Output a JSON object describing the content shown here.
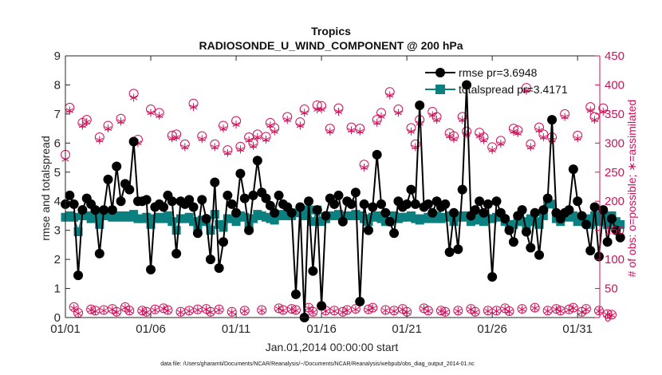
{
  "chart_data": {
    "type": "line",
    "title": "Tropics",
    "subtitle": "RADIOSONDE_U_WIND_COMPONENT @ 200 hPa",
    "xlabel": "Jan.01,2014 00:00:00 start",
    "ylabel_left": "rmse and totalspread",
    "ylabel_right": "# of obs: o=possible; ∗=assimilated",
    "footer": "data file: /Users/gharamti/Documents/NCAR/Reanalysis/~/Documents/NCAR/Reanalysis/webpub/obs_diag_output_2014-01.nc",
    "xlim": [
      0,
      31.3
    ],
    "ylim_left": [
      0,
      9
    ],
    "ylim_right": [
      0,
      450
    ],
    "x_ticks": [
      0,
      5,
      10,
      15,
      20,
      25,
      30
    ],
    "x_tick_labels": [
      "01/01",
      "01/06",
      "01/11",
      "01/16",
      "01/21",
      "01/26",
      "01/31"
    ],
    "y_ticks_left": [
      0,
      1,
      2,
      3,
      4,
      5,
      6,
      7,
      8,
      9
    ],
    "y_ticks_right": [
      0,
      50,
      100,
      150,
      200,
      250,
      300,
      350,
      400,
      450
    ],
    "legend": [
      {
        "label": "rmse pr=3.6948",
        "color": "#000000",
        "marker": "circle"
      },
      {
        "label": "totalspread pr=3.4171",
        "color": "#008080",
        "marker": "square"
      }
    ],
    "colors": {
      "rmse": "#000000",
      "totalspread": "#0a8080",
      "obs": "#d0105a",
      "axes": "#262626"
    },
    "series": [
      {
        "name": "rmse",
        "values": [
          3.9,
          4.2,
          3.9,
          1.45,
          3.7,
          4.1,
          3.9,
          3.7,
          2.2,
          3.7,
          4.75,
          3.7,
          5.2,
          4.0,
          4.6,
          4.4,
          6.05,
          4.0,
          4.0,
          4.05,
          1.65,
          3.8,
          3.9,
          3.8,
          4.2,
          4.0,
          2.2,
          4.0,
          3.9,
          4.05,
          3.8,
          2.9,
          4.05,
          3.4,
          2.0,
          4.65,
          1.7,
          2.6,
          4.2,
          3.9,
          3.6,
          4.95,
          4.1,
          3.0,
          4.2,
          5.4,
          4.3,
          4.1,
          3.85,
          3.6,
          4.2,
          3.9,
          3.8,
          3.6,
          0.8,
          3.8,
          0.0,
          4.0,
          1.6,
          3.7,
          0.4,
          3.5,
          4.1,
          3.9,
          4.2,
          3.3,
          4.0,
          3.9,
          4.3,
          0.55,
          3.9,
          3.0,
          3.8,
          5.6,
          3.9,
          3.6,
          3.3,
          2.9,
          4.0,
          3.8,
          3.9,
          4.4,
          3.9,
          7.3,
          3.8,
          3.9,
          3.6,
          4.0,
          3.8,
          3.9,
          2.25,
          3.6,
          2.35,
          4.4,
          8.0,
          3.5,
          3.7,
          4.0,
          3.6,
          3.9,
          1.4,
          4.0,
          3.6,
          3.4,
          3.0,
          2.6,
          3.5,
          3.7,
          2.95,
          2.4,
          3.6,
          2.15,
          3.7,
          4.1,
          6.8,
          3.6,
          3.4,
          3.6,
          3.7,
          5.1,
          4.0,
          3.5,
          3.2,
          2.3,
          3.8,
          2.1,
          3.7,
          2.6,
          3.4,
          3.0,
          2.75
        ]
      },
      {
        "name": "totalspread",
        "values": [
          3.45,
          3.5,
          3.45,
          2.95,
          3.5,
          3.5,
          3.4,
          3.5,
          3.2,
          3.5,
          3.5,
          3.45,
          3.5,
          3.45,
          3.5,
          3.45,
          3.55,
          3.4,
          3.4,
          3.45,
          3.2,
          3.4,
          3.45,
          3.4,
          3.5,
          3.3,
          3.0,
          3.4,
          3.4,
          3.45,
          3.3,
          3.1,
          3.35,
          3.3,
          3.0,
          3.55,
          3.2,
          3.1,
          3.4,
          3.4,
          3.3,
          3.5,
          3.45,
          3.2,
          3.4,
          3.55,
          3.5,
          3.45,
          3.4,
          3.35,
          3.5,
          3.55,
          3.5,
          3.5,
          3.6,
          3.7,
          3.5,
          3.7,
          3.3,
          3.7,
          3.3,
          3.4,
          3.5,
          3.5,
          3.55,
          3.4,
          3.5,
          3.5,
          3.55,
          3.5,
          3.4,
          3.3,
          3.45,
          3.5,
          3.4,
          3.3,
          3.3,
          3.5,
          3.4,
          3.45,
          3.45,
          3.5,
          3.4,
          3.35,
          3.4,
          3.45,
          3.4,
          3.5,
          3.4,
          3.45,
          3.5,
          3.3,
          3.5,
          3.45,
          3.5,
          3.3,
          3.35,
          3.45,
          3.3,
          3.4,
          3.4,
          3.45,
          3.5,
          3.3,
          3.2,
          3.2,
          3.3,
          3.3,
          3.2,
          3.4,
          3.3,
          3.2,
          3.5,
          3.95,
          3.9,
          3.4,
          3.3,
          3.5,
          3.45,
          3.5,
          3.3,
          3.35,
          3.4,
          3.2,
          3.5,
          3.3,
          3.5,
          3.2,
          3.5,
          3.3,
          3.2
        ]
      },
      {
        "name": "obs_possible",
        "values": [
          280,
          361,
          18,
          8,
          335,
          340,
          14,
          12,
          310,
          13,
          330,
          15,
          10,
          342,
          18,
          12,
          385,
          306,
          12,
          10,
          358,
          14,
          352,
          16,
          13,
          313,
          315,
          10,
          298,
          12,
          368,
          14,
          312,
          15,
          10,
          298,
          14,
          330,
          288,
          10,
          338,
          294,
          12,
          310,
          300,
          315,
          13,
          311,
          335,
          326,
          16,
          13,
          345,
          15,
          13,
          336,
          358,
          17,
          10,
          365,
          364,
          12,
          325,
          12,
          360,
          10,
          13,
          327,
          15,
          325,
          263,
          14,
          17,
          340,
          352,
          13,
          388,
          12,
          358,
          15,
          10,
          326,
          298,
          340,
          16,
          12,
          354,
          345,
          12,
          10,
          317,
          312,
          12,
          345,
          320,
          15,
          10,
          318,
          310,
          12,
          293,
          12,
          304,
          16,
          11,
          325,
          322,
          15,
          395,
          298,
          17,
          327,
          315,
          12,
          310,
          15,
          12,
          350,
          14,
          17,
          313,
          10,
          15,
          362,
          345,
          12,
          360,
          6,
          5
        ]
      },
      {
        "name": "obs_assimilated",
        "values": [
          272,
          356,
          16,
          7,
          330,
          336,
          13,
          11,
          305,
          12,
          325,
          14,
          9,
          337,
          17,
          11,
          378,
          300,
          11,
          9,
          352,
          13,
          347,
          15,
          12,
          308,
          310,
          9,
          293,
          11,
          362,
          13,
          307,
          14,
          9,
          293,
          13,
          325,
          283,
          9,
          332,
          289,
          11,
          305,
          295,
          310,
          12,
          306,
          330,
          320,
          15,
          12,
          340,
          14,
          12,
          330,
          352,
          16,
          9,
          358,
          358,
          11,
          320,
          11,
          354,
          9,
          12,
          322,
          14,
          320,
          258,
          13,
          16,
          335,
          346,
          12,
          382,
          11,
          352,
          14,
          9,
          320,
          293,
          334,
          15,
          11,
          348,
          340,
          11,
          9,
          312,
          307,
          11,
          340,
          315,
          14,
          9,
          312,
          305,
          11,
          288,
          11,
          299,
          15,
          10,
          320,
          317,
          14,
          390,
          293,
          16,
          322,
          310,
          11,
          305,
          14,
          11,
          345,
          13,
          16,
          308,
          9,
          14,
          356,
          340,
          11,
          354,
          5,
          4
        ]
      }
    ]
  }
}
